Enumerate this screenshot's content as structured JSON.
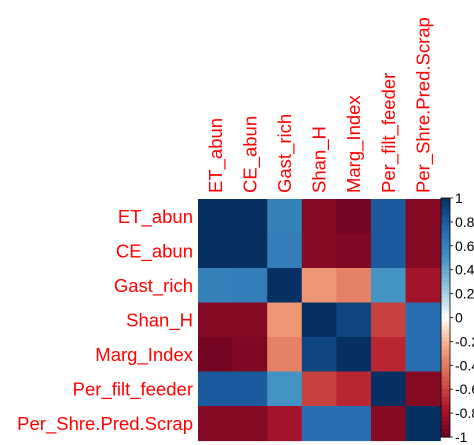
{
  "chart_data": {
    "type": "heatmap",
    "variables": [
      "ET_abun",
      "CE_abun",
      "Gast_rich",
      "Shan_H",
      "Marg_Index",
      "Per_filt_feeder",
      "Per_Shre.Pred.Scrap"
    ],
    "values": [
      [
        1.0,
        1.0,
        0.6,
        -0.9,
        -0.95,
        0.8,
        -0.9
      ],
      [
        1.0,
        1.0,
        0.62,
        -0.9,
        -0.92,
        0.8,
        -0.9
      ],
      [
        0.6,
        0.62,
        1.0,
        -0.3,
        -0.38,
        0.5,
        -0.8
      ],
      [
        -0.9,
        -0.9,
        -0.3,
        1.0,
        0.9,
        -0.6,
        0.7
      ],
      [
        -0.95,
        -0.92,
        -0.38,
        0.9,
        1.0,
        -0.7,
        0.7
      ],
      [
        0.8,
        0.8,
        0.5,
        -0.6,
        -0.7,
        1.0,
        -0.9
      ],
      [
        -0.9,
        -0.9,
        -0.8,
        0.7,
        0.7,
        -0.9,
        1.0
      ]
    ],
    "colorbar": {
      "range": [
        -1,
        1
      ],
      "tick_labels": [
        "-1",
        "-0.8",
        "-0.6",
        "-0.4",
        "-0.2",
        "0",
        "0.2",
        "0.4",
        "0.6",
        "0.8",
        "1"
      ]
    },
    "colors": {
      "negative": "#67001F",
      "zero": "#FFFFFF",
      "positive": "#053061",
      "label": "#ff0000"
    }
  }
}
